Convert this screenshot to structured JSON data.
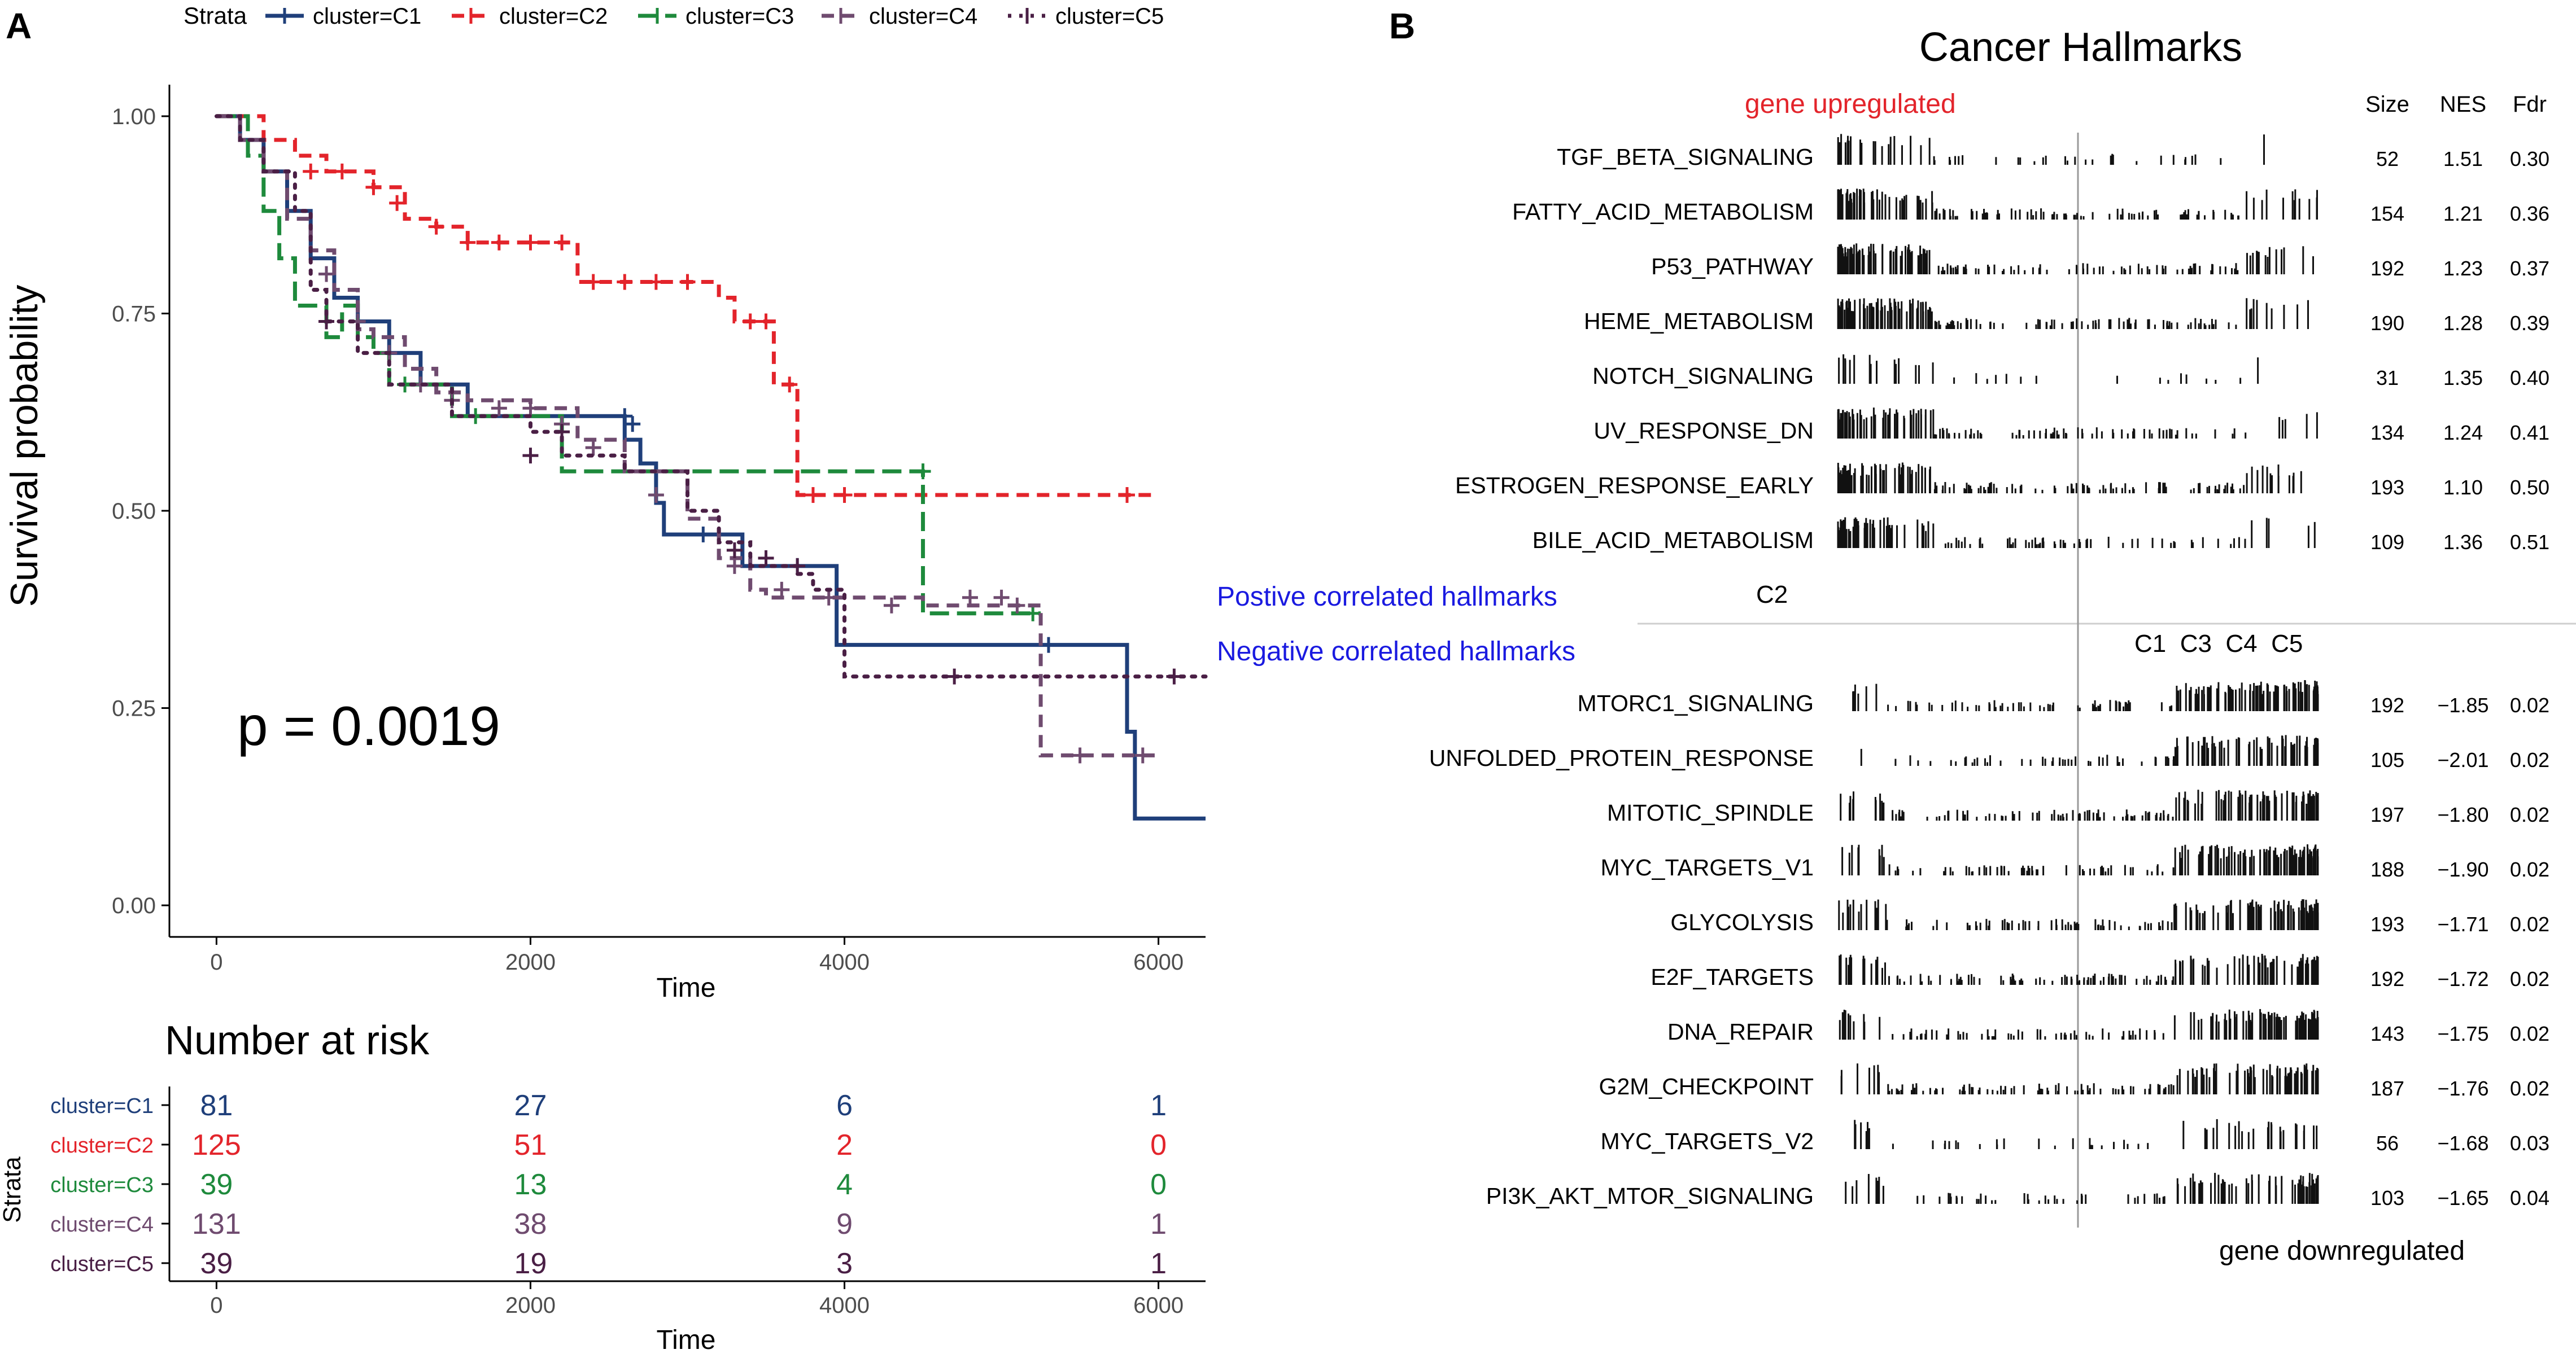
{
  "panel_a": {
    "label": "A",
    "legend_title": "Strata",
    "colors": {
      "C1": "#1F3F7A",
      "C2": "#E3242B",
      "C3": "#1E8A3C",
      "C4": "#6F4B6F",
      "C5": "#4A1F45"
    }
  },
  "panel_b": {
    "label": "B",
    "title": "Cancer Hallmarks",
    "up_label": "gene upregulated",
    "down_label": "gene downregulated",
    "positive_label": "Postive correlated hallmarks",
    "negative_label": "Negative correlated hallmarks",
    "pos_cluster": "C2",
    "neg_clusters": "C1  C3  C4  C5",
    "col_headers": [
      "Size",
      "NES",
      "Fdr"
    ]
  },
  "chart_data": [
    {
      "type": "line",
      "subtype": "kaplan-meier",
      "title": "",
      "xlabel": "Time",
      "ylabel": "Survival probability",
      "xlim": [
        -300,
        6300
      ],
      "ylim": [
        -0.04,
        1.04
      ],
      "xticks": [
        "0",
        "2000",
        "4000",
        "6000"
      ],
      "yticks": [
        "0.00",
        "0.25",
        "0.50",
        "0.75",
        "1.00"
      ],
      "pvalue": "p = 0.0019",
      "legend_title": "Strata",
      "legend_position": "top",
      "series": [
        {
          "name": "cluster=C1",
          "color": "#1F3F7A",
          "dash": "solid",
          "points": [
            [
              0,
              1.0
            ],
            [
              150,
              0.97
            ],
            [
              300,
              0.93
            ],
            [
              450,
              0.88
            ],
            [
              600,
              0.82
            ],
            [
              750,
              0.77
            ],
            [
              900,
              0.74
            ],
            [
              1100,
              0.7
            ],
            [
              1300,
              0.66
            ],
            [
              1600,
              0.62
            ],
            [
              2100,
              0.62
            ],
            [
              2400,
              0.62
            ],
            [
              2600,
              0.59
            ],
            [
              2700,
              0.56
            ],
            [
              2800,
              0.51
            ],
            [
              2850,
              0.47
            ],
            [
              3200,
              0.47
            ],
            [
              3350,
              0.43
            ],
            [
              3800,
              0.43
            ],
            [
              3950,
              0.33
            ],
            [
              5200,
              0.33
            ],
            [
              5700,
              0.33
            ],
            [
              5800,
              0.22
            ],
            [
              5850,
              0.11
            ],
            [
              6300,
              0.11
            ]
          ],
          "censors": [
            [
              2600,
              0.62
            ],
            [
              2650,
              0.61
            ],
            [
              3100,
              0.47
            ],
            [
              5300,
              0.33
            ],
            [
              3700,
              0.43
            ]
          ]
        },
        {
          "name": "cluster=C2",
          "color": "#E3242B",
          "dash": "dash",
          "points": [
            [
              0,
              1.0
            ],
            [
              300,
              0.97
            ],
            [
              500,
              0.95
            ],
            [
              700,
              0.93
            ],
            [
              1000,
              0.91
            ],
            [
              1200,
              0.87
            ],
            [
              1400,
              0.86
            ],
            [
              1600,
              0.84
            ],
            [
              2200,
              0.84
            ],
            [
              2300,
              0.79
            ],
            [
              3150,
              0.79
            ],
            [
              3200,
              0.77
            ],
            [
              3300,
              0.74
            ],
            [
              3550,
              0.74
            ],
            [
              3550,
              0.66
            ],
            [
              3700,
              0.66
            ],
            [
              3700,
              0.52
            ],
            [
              6000,
              0.52
            ]
          ],
          "censors": [
            [
              600,
              0.93
            ],
            [
              800,
              0.93
            ],
            [
              1000,
              0.91
            ],
            [
              1150,
              0.89
            ],
            [
              1400,
              0.86
            ],
            [
              1600,
              0.84
            ],
            [
              1800,
              0.84
            ],
            [
              2000,
              0.84
            ],
            [
              2200,
              0.84
            ],
            [
              2400,
              0.79
            ],
            [
              2600,
              0.79
            ],
            [
              2800,
              0.79
            ],
            [
              3000,
              0.79
            ],
            [
              3400,
              0.74
            ],
            [
              3500,
              0.74
            ],
            [
              3650,
              0.66
            ],
            [
              3800,
              0.52
            ],
            [
              4000,
              0.52
            ],
            [
              5800,
              0.52
            ]
          ]
        },
        {
          "name": "cluster=C3",
          "color": "#1E8A3C",
          "dash": "longdash",
          "points": [
            [
              0,
              1.0
            ],
            [
              200,
              0.95
            ],
            [
              300,
              0.88
            ],
            [
              400,
              0.82
            ],
            [
              500,
              0.76
            ],
            [
              700,
              0.72
            ],
            [
              800,
              0.76
            ],
            [
              900,
              0.72
            ],
            [
              1000,
              0.7
            ],
            [
              1100,
              0.66
            ],
            [
              1300,
              0.66
            ],
            [
              1500,
              0.62
            ],
            [
              2000,
              0.62
            ],
            [
              2200,
              0.55
            ],
            [
              4500,
              0.55
            ],
            [
              4500,
              0.37
            ],
            [
              5250,
              0.37
            ]
          ],
          "censors": [
            [
              1200,
              0.66
            ],
            [
              1650,
              0.62
            ],
            [
              4500,
              0.55
            ],
            [
              5200,
              0.37
            ]
          ]
        },
        {
          "name": "cluster=C4",
          "color": "#6F4B6F",
          "dash": "dash",
          "points": [
            [
              0,
              1.0
            ],
            [
              150,
              0.97
            ],
            [
              300,
              0.93
            ],
            [
              450,
              0.87
            ],
            [
              600,
              0.83
            ],
            [
              750,
              0.78
            ],
            [
              900,
              0.73
            ],
            [
              1000,
              0.72
            ],
            [
              1200,
              0.68
            ],
            [
              1400,
              0.65
            ],
            [
              1600,
              0.64
            ],
            [
              2000,
              0.63
            ],
            [
              2300,
              0.59
            ],
            [
              2600,
              0.55
            ],
            [
              3000,
              0.49
            ],
            [
              3200,
              0.44
            ],
            [
              3400,
              0.4
            ],
            [
              3500,
              0.39
            ],
            [
              4000,
              0.39
            ],
            [
              4500,
              0.38
            ],
            [
              5250,
              0.38
            ],
            [
              5250,
              0.19
            ],
            [
              6000,
              0.19
            ]
          ],
          "censors": [
            [
              700,
              0.8
            ],
            [
              900,
              0.74
            ],
            [
              1100,
              0.7
            ],
            [
              1300,
              0.66
            ],
            [
              1500,
              0.64
            ],
            [
              1800,
              0.63
            ],
            [
              2000,
              0.63
            ],
            [
              2200,
              0.61
            ],
            [
              2400,
              0.58
            ],
            [
              2800,
              0.52
            ],
            [
              3300,
              0.43
            ],
            [
              3600,
              0.4
            ],
            [
              3900,
              0.39
            ],
            [
              4300,
              0.38
            ],
            [
              4800,
              0.39
            ],
            [
              5000,
              0.39
            ],
            [
              5100,
              0.38
            ],
            [
              5500,
              0.19
            ],
            [
              5900,
              0.19
            ]
          ]
        },
        {
          "name": "cluster=C5",
          "color": "#4A1F45",
          "dash": "dot",
          "points": [
            [
              0,
              1.0
            ],
            [
              150,
              0.97
            ],
            [
              300,
              0.93
            ],
            [
              500,
              0.88
            ],
            [
              600,
              0.78
            ],
            [
              700,
              0.74
            ],
            [
              900,
              0.7
            ],
            [
              1100,
              0.66
            ],
            [
              1500,
              0.62
            ],
            [
              2000,
              0.6
            ],
            [
              2200,
              0.57
            ],
            [
              2600,
              0.55
            ],
            [
              3000,
              0.5
            ],
            [
              3200,
              0.46
            ],
            [
              3400,
              0.43
            ],
            [
              3700,
              0.42
            ],
            [
              3800,
              0.4
            ],
            [
              4000,
              0.29
            ],
            [
              6300,
              0.29
            ]
          ],
          "censors": [
            [
              700,
              0.74
            ],
            [
              2000,
              0.57
            ],
            [
              2200,
              0.6
            ],
            [
              3300,
              0.45
            ],
            [
              3500,
              0.44
            ],
            [
              3700,
              0.43
            ],
            [
              4700,
              0.29
            ],
            [
              6100,
              0.29
            ]
          ]
        }
      ]
    },
    {
      "type": "table",
      "title": "Number at risk",
      "xlabel": "Time",
      "ylabel": "Strata",
      "x": [
        "0",
        "2000",
        "4000",
        "6000"
      ],
      "rows": [
        {
          "name": "cluster=C1",
          "values": [
            "81",
            "27",
            "6",
            "1"
          ]
        },
        {
          "name": "cluster=C2",
          "values": [
            "125",
            "51",
            "2",
            "0"
          ]
        },
        {
          "name": "cluster=C3",
          "values": [
            "39",
            "13",
            "4",
            "0"
          ]
        },
        {
          "name": "cluster=C4",
          "values": [
            "131",
            "38",
            "9",
            "1"
          ]
        },
        {
          "name": "cluster=C5",
          "values": [
            "39",
            "19",
            "3",
            "1"
          ]
        }
      ]
    },
    {
      "type": "table",
      "subtype": "gsea-barcode",
      "title": "Cancer Hallmarks",
      "columns": [
        "Size",
        "NES",
        "Fdr"
      ],
      "upregulated": [
        {
          "name": "TGF_BETA_SIGNALING",
          "size": "52",
          "nes": "1.51",
          "fdr": "0.30"
        },
        {
          "name": "FATTY_ACID_METABOLISM",
          "size": "154",
          "nes": "1.21",
          "fdr": "0.36"
        },
        {
          "name": "P53_PATHWAY",
          "size": "192",
          "nes": "1.23",
          "fdr": "0.37"
        },
        {
          "name": "HEME_METABOLISM",
          "size": "190",
          "nes": "1.28",
          "fdr": "0.39"
        },
        {
          "name": "NOTCH_SIGNALING",
          "size": "31",
          "nes": "1.35",
          "fdr": "0.40"
        },
        {
          "name": "UV_RESPONSE_DN",
          "size": "134",
          "nes": "1.24",
          "fdr": "0.41"
        },
        {
          "name": "ESTROGEN_RESPONSE_EARLY",
          "size": "193",
          "nes": "1.10",
          "fdr": "0.50"
        },
        {
          "name": "BILE_ACID_METABOLISM",
          "size": "109",
          "nes": "1.36",
          "fdr": "0.51"
        }
      ],
      "downregulated": [
        {
          "name": "MTORC1_SIGNALING",
          "size": "192",
          "nes": "−1.85",
          "fdr": "0.02"
        },
        {
          "name": "UNFOLDED_PROTEIN_RESPONSE",
          "size": "105",
          "nes": "−2.01",
          "fdr": "0.02"
        },
        {
          "name": "MITOTIC_SPINDLE",
          "size": "197",
          "nes": "−1.80",
          "fdr": "0.02"
        },
        {
          "name": "MYC_TARGETS_V1",
          "size": "188",
          "nes": "−1.90",
          "fdr": "0.02"
        },
        {
          "name": "GLYCOLYSIS",
          "size": "193",
          "nes": "−1.71",
          "fdr": "0.02"
        },
        {
          "name": "E2F_TARGETS",
          "size": "192",
          "nes": "−1.72",
          "fdr": "0.02"
        },
        {
          "name": "DNA_REPAIR",
          "size": "143",
          "nes": "−1.75",
          "fdr": "0.02"
        },
        {
          "name": "G2M_CHECKPOINT",
          "size": "187",
          "nes": "−1.76",
          "fdr": "0.02"
        },
        {
          "name": "MYC_TARGETS_V2",
          "size": "56",
          "nes": "−1.68",
          "fdr": "0.03"
        },
        {
          "name": "PI3K_AKT_MTOR_SIGNALING",
          "size": "103",
          "nes": "−1.65",
          "fdr": "0.04"
        }
      ]
    }
  ]
}
